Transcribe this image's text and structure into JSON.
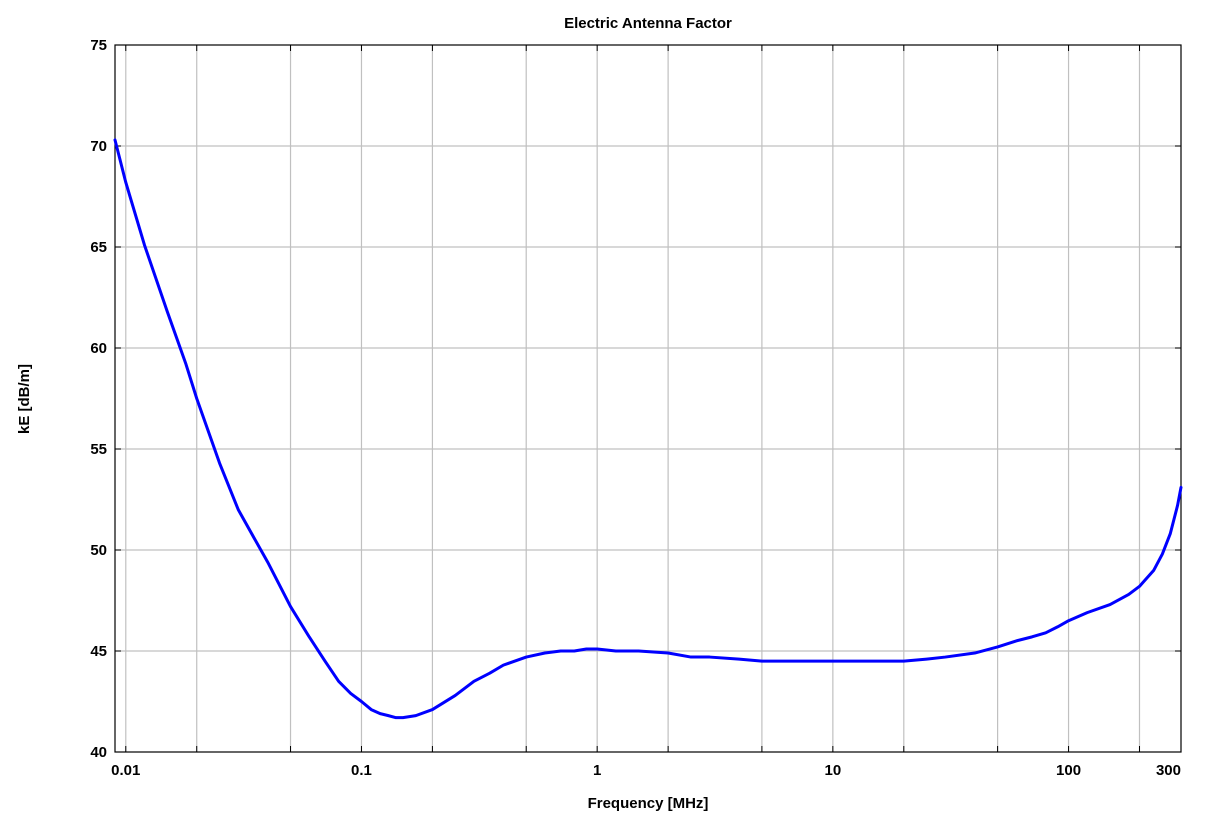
{
  "chart_data": {
    "type": "line",
    "title": "Electric Antenna Factor",
    "xlabel": "Frequency [MHz]",
    "ylabel": "kE [dB/m]",
    "xscale": "log",
    "xlim": [
      0.009,
      300
    ],
    "ylim": [
      40,
      75
    ],
    "grid": true,
    "x_tick_labels": [
      "0.01",
      "0.1",
      "1",
      "10",
      "100",
      "300"
    ],
    "y_tick_labels": [
      "40",
      "45",
      "50",
      "55",
      "60",
      "65",
      "70",
      "75"
    ],
    "series_color": "#0000ff",
    "series": [
      {
        "x": [
          0.009,
          0.01,
          0.012,
          0.015,
          0.018,
          0.02,
          0.025,
          0.03,
          0.035,
          0.04,
          0.05,
          0.06,
          0.07,
          0.08,
          0.09,
          0.1,
          0.11,
          0.12,
          0.13,
          0.14,
          0.15,
          0.17,
          0.2,
          0.25,
          0.3,
          0.35,
          0.4,
          0.5,
          0.6,
          0.7,
          0.8,
          0.9,
          1,
          1.2,
          1.5,
          2,
          2.5,
          3,
          4,
          5,
          6,
          8,
          10,
          15,
          20,
          25,
          30,
          40,
          50,
          60,
          70,
          80,
          90,
          100,
          120,
          150,
          180,
          200,
          230,
          250,
          270,
          290,
          300
        ],
        "values": [
          70.3,
          68.2,
          65.1,
          61.8,
          59.2,
          57.5,
          54.3,
          52.0,
          50.6,
          49.4,
          47.2,
          45.7,
          44.5,
          43.5,
          42.9,
          42.5,
          42.1,
          41.9,
          41.8,
          41.7,
          41.7,
          41.8,
          42.1,
          42.8,
          43.5,
          43.9,
          44.3,
          44.7,
          44.9,
          45.0,
          45.0,
          45.1,
          45.1,
          45.0,
          45.0,
          44.9,
          44.7,
          44.7,
          44.6,
          44.5,
          44.5,
          44.5,
          44.5,
          44.5,
          44.5,
          44.6,
          44.7,
          44.9,
          45.2,
          45.5,
          45.7,
          45.9,
          46.2,
          46.5,
          46.9,
          47.3,
          47.8,
          48.2,
          49.0,
          49.8,
          50.8,
          52.2,
          53.1
        ]
      }
    ]
  }
}
